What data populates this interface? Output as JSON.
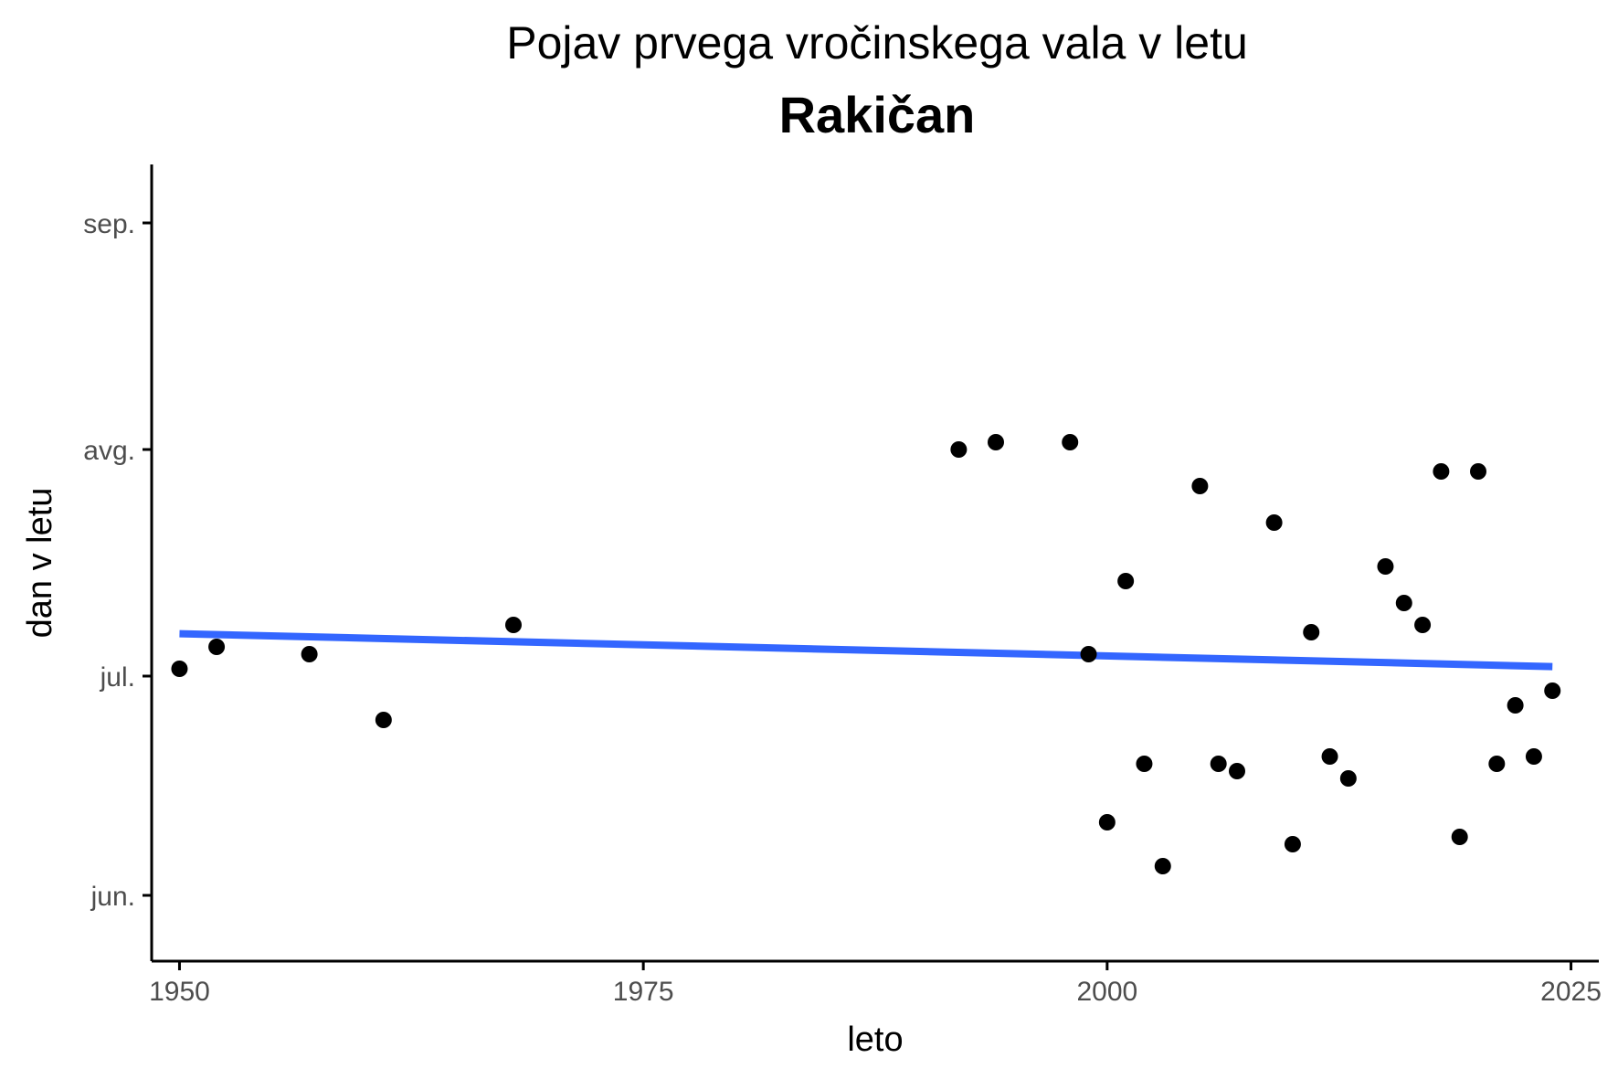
{
  "chart_data": {
    "type": "scatter",
    "title": "Pojav prvega vročinskega vala v letu",
    "subtitle": "Rakičan",
    "xlabel": "leto",
    "ylabel": "dan v letu",
    "xlim": [
      1948.5,
      2026.5
    ],
    "ylim": [
      143,
      252
    ],
    "x_ticks": [
      {
        "value": 1950,
        "label": "1950"
      },
      {
        "value": 1975,
        "label": "1975"
      },
      {
        "value": 2000,
        "label": "2000"
      },
      {
        "value": 2025,
        "label": "2025"
      }
    ],
    "y_ticks": [
      {
        "value": 152,
        "label": "jun."
      },
      {
        "value": 182,
        "label": "jul."
      },
      {
        "value": 213,
        "label": "avg."
      },
      {
        "value": 244,
        "label": "sep."
      }
    ],
    "grid": false,
    "legend": "none",
    "point_color": "#000000",
    "trend_color": "#3366ff",
    "points": [
      {
        "x": 1950,
        "y": 183
      },
      {
        "x": 1952,
        "y": 186
      },
      {
        "x": 1957,
        "y": 185
      },
      {
        "x": 1961,
        "y": 176
      },
      {
        "x": 1968,
        "y": 189
      },
      {
        "x": 1992,
        "y": 213
      },
      {
        "x": 1994,
        "y": 214
      },
      {
        "x": 1998,
        "y": 214
      },
      {
        "x": 1999,
        "y": 185
      },
      {
        "x": 2000,
        "y": 162
      },
      {
        "x": 2001,
        "y": 195
      },
      {
        "x": 2002,
        "y": 170
      },
      {
        "x": 2003,
        "y": 156
      },
      {
        "x": 2005,
        "y": 208
      },
      {
        "x": 2006,
        "y": 170
      },
      {
        "x": 2007,
        "y": 169
      },
      {
        "x": 2009,
        "y": 203
      },
      {
        "x": 2010,
        "y": 159
      },
      {
        "x": 2011,
        "y": 188
      },
      {
        "x": 2012,
        "y": 171
      },
      {
        "x": 2013,
        "y": 168
      },
      {
        "x": 2015,
        "y": 197
      },
      {
        "x": 2016,
        "y": 192
      },
      {
        "x": 2017,
        "y": 189
      },
      {
        "x": 2018,
        "y": 210
      },
      {
        "x": 2019,
        "y": 160
      },
      {
        "x": 2020,
        "y": 210
      },
      {
        "x": 2021,
        "y": 170
      },
      {
        "x": 2022,
        "y": 178
      },
      {
        "x": 2023,
        "y": 171
      },
      {
        "x": 2024,
        "y": 180
      }
    ],
    "trend_line": {
      "x": [
        1950,
        2024
      ],
      "y": [
        187.8,
        183.3
      ]
    }
  }
}
